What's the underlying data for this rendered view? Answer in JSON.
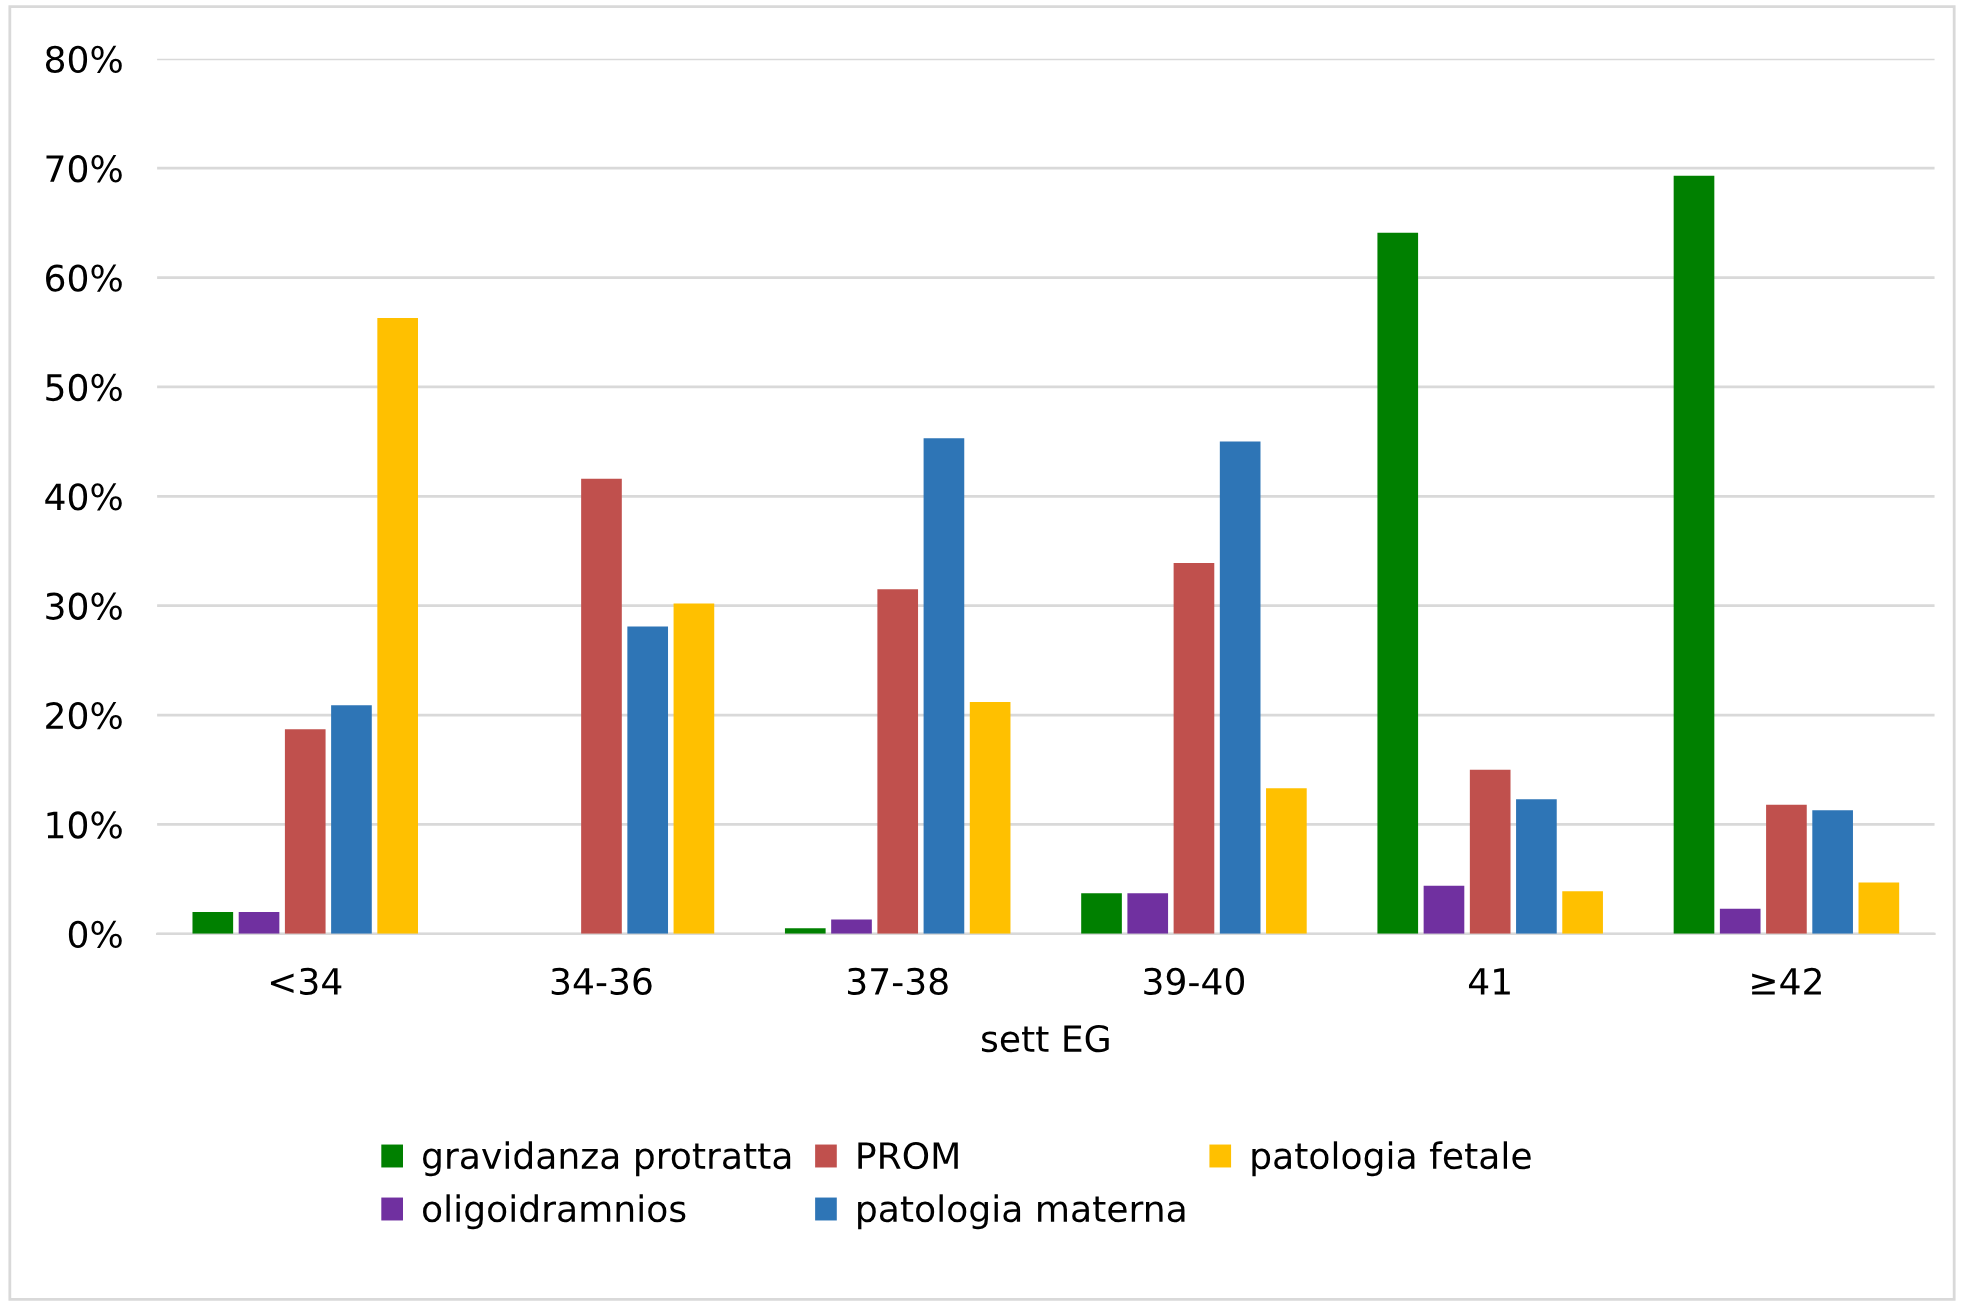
{
  "chart_data": {
    "type": "bar",
    "xlabel": "sett EG",
    "categories": [
      "<34",
      "34-36",
      "37-38",
      "39-40",
      "41",
      "≥42"
    ],
    "series": [
      {
        "name": "gravidanza protratta",
        "color": "#008000",
        "values": [
          2.0,
          0,
          0.5,
          3.7,
          64.1,
          69.3
        ]
      },
      {
        "name": "oligoidramnios",
        "color": "#7030a0",
        "values": [
          2.0,
          0,
          1.3,
          3.7,
          4.4,
          2.3
        ]
      },
      {
        "name": "PROM",
        "color": "#c0504d",
        "values": [
          18.7,
          41.6,
          31.5,
          33.9,
          15.0,
          11.8
        ]
      },
      {
        "name": "patologia materna",
        "color": "#2e75b6",
        "values": [
          20.9,
          28.1,
          45.3,
          45.0,
          12.3,
          11.3
        ]
      },
      {
        "name": "patologia fetale",
        "color": "#ffc000",
        "values": [
          56.3,
          30.2,
          21.2,
          13.3,
          3.9,
          4.7
        ]
      }
    ],
    "ylim": [
      0,
      80
    ],
    "yticks": [
      {
        "value": 0,
        "label": "0%"
      },
      {
        "value": 10,
        "label": "10%"
      },
      {
        "value": 20,
        "label": "20%"
      },
      {
        "value": 30,
        "label": "30%"
      },
      {
        "value": 40,
        "label": "40%"
      },
      {
        "value": 50,
        "label": "50%"
      },
      {
        "value": 60,
        "label": "60%"
      },
      {
        "value": 70,
        "label": "70%"
      },
      {
        "value": 80,
        "label": "80%"
      }
    ],
    "grid": "y",
    "legend": "bottom"
  }
}
